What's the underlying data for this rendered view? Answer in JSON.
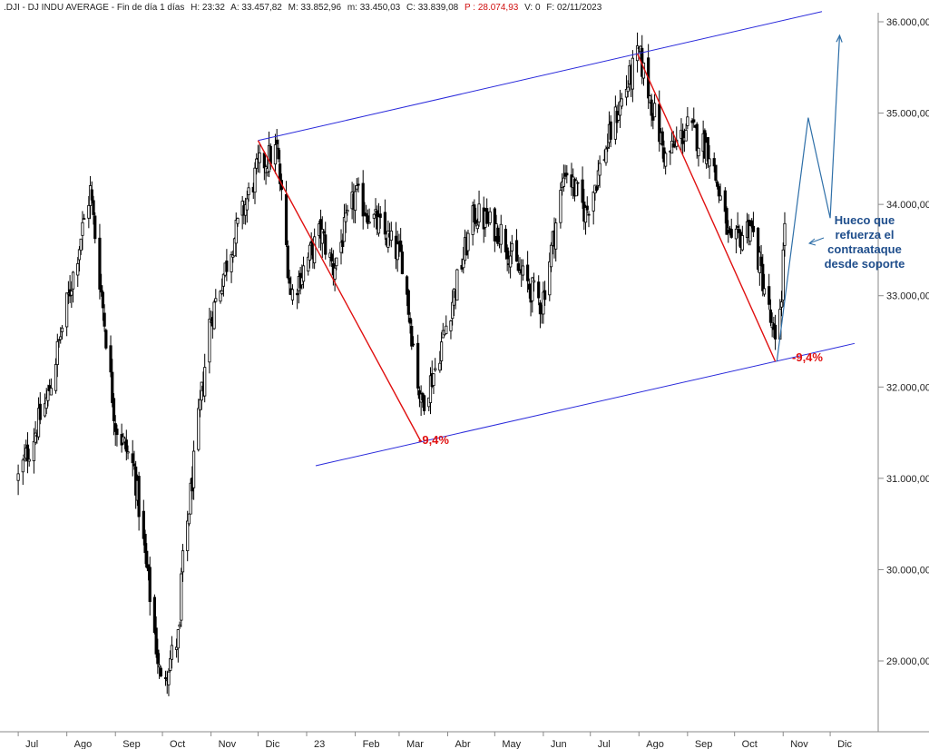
{
  "header": {
    "symbol": ".DJI - DJ INDU AVERAGE - Fin de día 1 días",
    "h": "H: 23:32",
    "a": "A: 33.457,82",
    "m": "M: 33.852,96",
    "mlow": "m: 33.450,03",
    "c": "C: 33.839,08",
    "p": "P : 28.074,93",
    "v": "V: 0",
    "f": "F: 02/11/2023"
  },
  "colors": {
    "candles": "#000000",
    "channel": "#2a2adb",
    "decline": "#e01010",
    "projection": "#2e6fa8",
    "annotation_text": "#1f4e8c",
    "pct_text": "#e01010",
    "header_highlight": "#d01010"
  },
  "chart_data": {
    "type": "candlestick",
    "y_ticks": [
      "36.000,00",
      "35.000,00",
      "34.000,00",
      "33.000,00",
      "32.000,00",
      "31.000,00",
      "30.000,00",
      "29.000,00"
    ],
    "y_tick_values": [
      36000,
      35000,
      34000,
      33000,
      32000,
      31000,
      30000,
      29000
    ],
    "ylim": [
      28400,
      36200
    ],
    "x_ticks": [
      "Jul",
      "Ago",
      "Sep",
      "Oct",
      "Nov",
      "Dic",
      "23",
      "Feb",
      "Mar",
      "Abr",
      "May",
      "Jun",
      "Jul",
      "Ago",
      "Sep",
      "Oct",
      "Nov",
      "Dic"
    ],
    "anchors": [
      {
        "date": "2022-07-01",
        "close": 31000
      },
      {
        "date": "2022-07-20",
        "close": 31900
      },
      {
        "date": "2022-08-16",
        "close": 34150
      },
      {
        "date": "2022-09-01",
        "close": 31600
      },
      {
        "date": "2022-09-13",
        "close": 31100
      },
      {
        "date": "2022-09-30",
        "close": 28750
      },
      {
        "date": "2022-10-12",
        "close": 29300
      },
      {
        "date": "2022-10-13",
        "close": 29900
      },
      {
        "date": "2022-10-31",
        "close": 32700
      },
      {
        "date": "2022-11-15",
        "close": 33600
      },
      {
        "date": "2022-12-01",
        "close": 34400
      },
      {
        "date": "2022-12-13",
        "close": 34600
      },
      {
        "date": "2022-12-22",
        "close": 33000
      },
      {
        "date": "2023-01-10",
        "close": 33700
      },
      {
        "date": "2023-01-18",
        "close": 33300
      },
      {
        "date": "2023-02-01",
        "close": 34100
      },
      {
        "date": "2023-02-10",
        "close": 33900
      },
      {
        "date": "2023-03-03",
        "close": 33400
      },
      {
        "date": "2023-03-15",
        "close": 31800
      },
      {
        "date": "2023-03-24",
        "close": 32200
      },
      {
        "date": "2023-04-18",
        "close": 33900
      },
      {
        "date": "2023-05-05",
        "close": 33700
      },
      {
        "date": "2023-05-15",
        "close": 33300
      },
      {
        "date": "2023-05-31",
        "close": 32900
      },
      {
        "date": "2023-06-15",
        "close": 34400
      },
      {
        "date": "2023-06-28",
        "close": 33900
      },
      {
        "date": "2023-07-18",
        "close": 35000
      },
      {
        "date": "2023-08-01",
        "close": 35650
      },
      {
        "date": "2023-08-18",
        "close": 34500
      },
      {
        "date": "2023-09-01",
        "close": 34840
      },
      {
        "date": "2023-09-15",
        "close": 34600
      },
      {
        "date": "2023-09-29",
        "close": 33500
      },
      {
        "date": "2023-10-11",
        "close": 33800
      },
      {
        "date": "2023-10-20",
        "close": 33100
      },
      {
        "date": "2023-10-27",
        "close": 32420
      },
      {
        "date": "2023-10-31",
        "close": 33050
      },
      {
        "date": "2023-11-02",
        "close": 33840
      }
    ],
    "channel": {
      "upper": [
        {
          "date": "2022-12-01",
          "value": 34700
        },
        {
          "date": "2023-07-31",
          "value": 35650
        }
      ],
      "lower": [
        {
          "date": "2023-03-15",
          "value": 31400
        },
        {
          "date": "2023-10-27",
          "value": 32280
        }
      ]
    },
    "declines": [
      {
        "from": {
          "date": "2022-12-01",
          "value": 34700
        },
        "to": {
          "date": "2023-03-15",
          "value": 31400
        },
        "label": "-9,4%"
      },
      {
        "from": {
          "date": "2023-07-31",
          "value": 35650
        },
        "to": {
          "date": "2023-10-27",
          "value": 32280
        },
        "label": "-9,4%"
      }
    ],
    "projection": [
      {
        "date": "2023-10-28",
        "value": 32280
      },
      {
        "date": "2023-11-17",
        "value": 34950
      },
      {
        "date": "2023-12-01",
        "value": 33850
      },
      {
        "date": "2023-12-07",
        "value": 35850
      }
    ],
    "annotation": [
      "Hueco que",
      "refuerza el",
      "contraataque",
      "desde soporte"
    ]
  }
}
